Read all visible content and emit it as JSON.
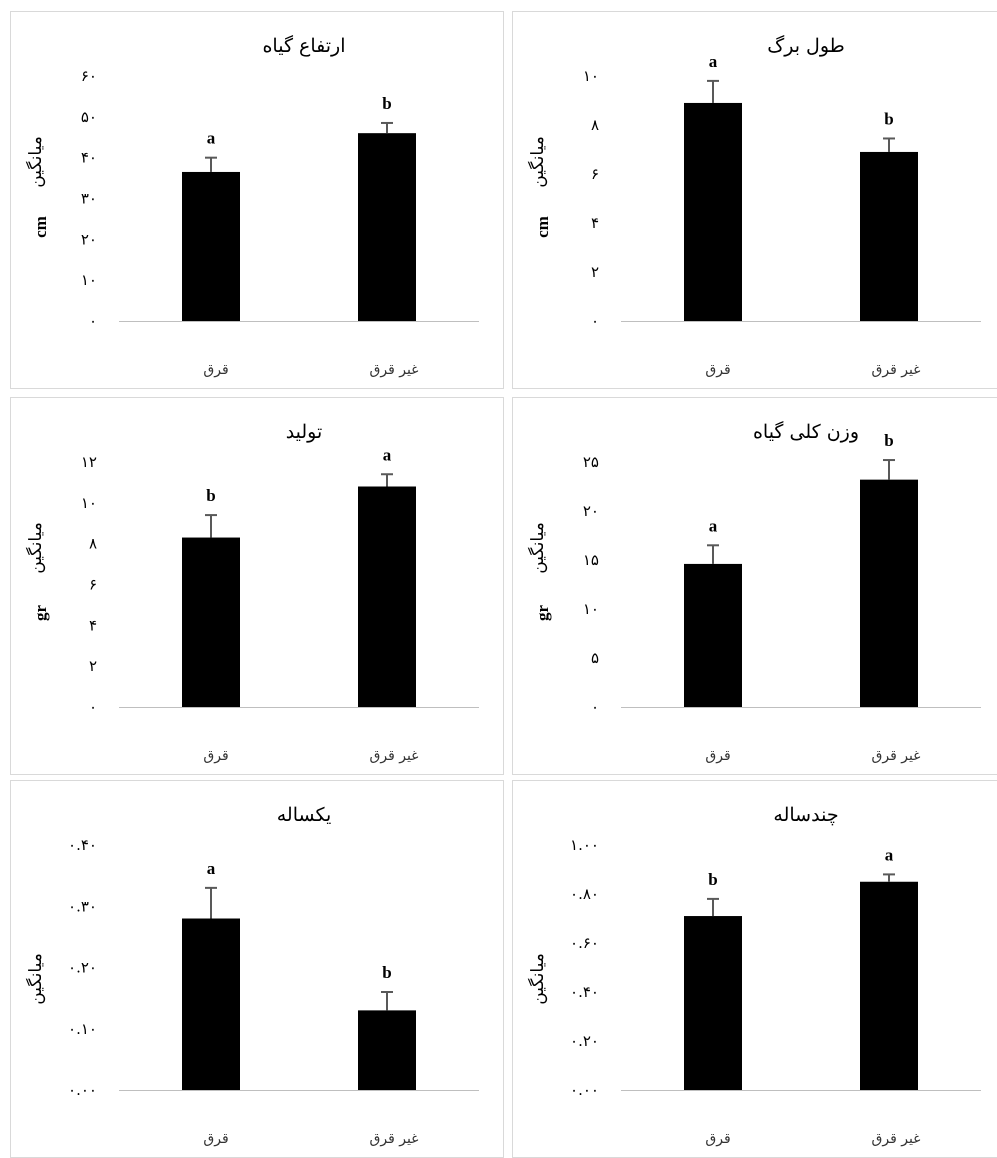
{
  "chart_data": [
    {
      "type": "bar",
      "title": "ارتفاع گیاه",
      "ylabel": "میانگین",
      "unit": "cm",
      "categories": [
        "قرق",
        "غیر قرق"
      ],
      "values": [
        36.5,
        46.0
      ],
      "errors": [
        3.5,
        2.5
      ],
      "significance": [
        "a",
        "b"
      ],
      "ylim": [
        0,
        60
      ],
      "yticks": [
        "۰",
        "۱۰",
        "۲۰",
        "۳۰",
        "۴۰",
        "۵۰",
        "۶۰"
      ],
      "grid": false
    },
    {
      "type": "bar",
      "title": "طول برگ",
      "ylabel": "میانگین",
      "unit": "cm",
      "categories": [
        "قرق",
        "غیر قرق"
      ],
      "values": [
        8.9,
        6.9
      ],
      "errors": [
        0.9,
        0.55
      ],
      "significance": [
        "a",
        "b"
      ],
      "ylim": [
        0,
        10
      ],
      "yticks": [
        "۰",
        "۲",
        "۴",
        "۶",
        "۸",
        "۱۰"
      ],
      "grid": false
    },
    {
      "type": "bar",
      "title": "تولید",
      "ylabel": "میانگین",
      "unit": "gr",
      "categories": [
        "قرق",
        "غیر قرق"
      ],
      "values": [
        8.3,
        10.8
      ],
      "errors": [
        1.1,
        0.6
      ],
      "significance": [
        "b",
        "a"
      ],
      "ylim": [
        0,
        12
      ],
      "yticks": [
        "۰",
        "۲",
        "۴",
        "۶",
        "۸",
        "۱۰",
        "۱۲"
      ],
      "grid": false
    },
    {
      "type": "bar",
      "title": "وزن کلی گیاه",
      "ylabel": "میانگین",
      "unit": "gr",
      "categories": [
        "قرق",
        "غیر قرق"
      ],
      "values": [
        14.6,
        23.2
      ],
      "errors": [
        1.9,
        2.0
      ],
      "significance": [
        "a",
        "b"
      ],
      "ylim": [
        0,
        25
      ],
      "yticks": [
        "۰",
        "۵",
        "۱۰",
        "۱۵",
        "۲۰",
        "۲۵"
      ],
      "grid": false
    },
    {
      "type": "bar",
      "title": "یکساله",
      "ylabel": "میانگین",
      "unit": "",
      "categories": [
        "قرق",
        "غیر قرق"
      ],
      "values": [
        0.28,
        0.13
      ],
      "errors": [
        0.05,
        0.03
      ],
      "significance": [
        "a",
        "b"
      ],
      "ylim": [
        0,
        0.4
      ],
      "yticks": [
        "۰.۰۰",
        "۰.۱۰",
        "۰.۲۰",
        "۰.۳۰",
        "۰.۴۰"
      ],
      "grid": false
    },
    {
      "type": "bar",
      "title": "چندساله",
      "ylabel": "میانگین",
      "unit": "",
      "categories": [
        "قرق",
        "غیر قرق"
      ],
      "values": [
        0.71,
        0.85
      ],
      "errors": [
        0.07,
        0.03
      ],
      "significance": [
        "b",
        "a"
      ],
      "ylim": [
        0,
        1.0
      ],
      "yticks": [
        "۰.۰۰",
        "۰.۲۰",
        "۰.۴۰",
        "۰.۶۰",
        "۰.۸۰",
        "۱.۰۰"
      ],
      "grid": false
    }
  ],
  "colors": {
    "bar": "#000000",
    "error_bar": "#595959",
    "axis": "#bfbfbf",
    "border": "#d9d9d9"
  }
}
